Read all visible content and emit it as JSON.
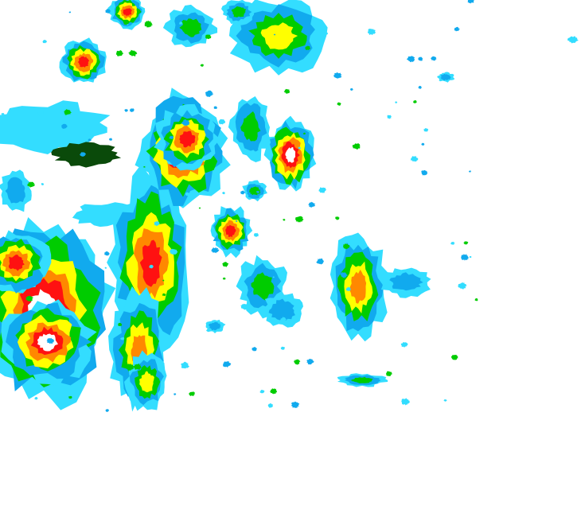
{
  "radar": {
    "background": "#ffffff",
    "intensity_scale": [
      {
        "level": 1,
        "color": "#33ddff"
      },
      {
        "level": 2,
        "color": "#11aaee"
      },
      {
        "level": 3,
        "color": "#00cc00"
      },
      {
        "level": 4,
        "color": "#ffff00"
      },
      {
        "level": 5,
        "color": "#ff8800"
      },
      {
        "level": 6,
        "color": "#ff1111"
      },
      {
        "level": 7,
        "color": "#ffffff"
      }
    ],
    "special_colors": {
      "dark_green": "#0a4a0a",
      "black_outline": "#003300"
    }
  }
}
